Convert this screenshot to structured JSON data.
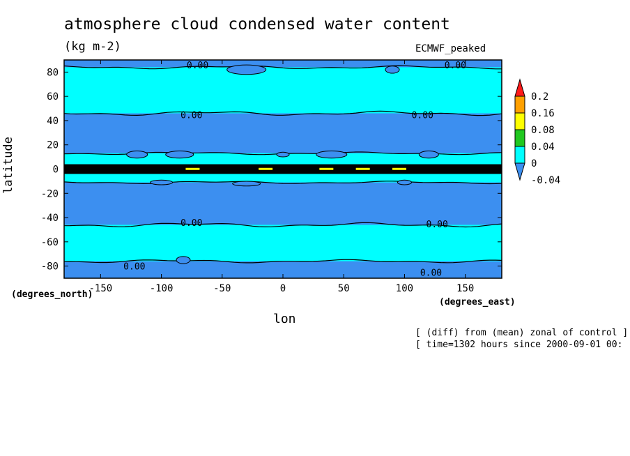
{
  "chart_data": {
    "type": "heatmap",
    "title": "atmosphere cloud condensed water content",
    "units": "(kg m-2)",
    "model_label": "ECMWF_peaked",
    "xlabel": "lon",
    "ylabel": "latitude",
    "x_units": "(degrees_east)",
    "y_units": "(degrees_north)",
    "xlim": [
      -180,
      180
    ],
    "ylim": [
      -90,
      90
    ],
    "x_ticks": [
      -150,
      -100,
      -50,
      0,
      50,
      100,
      150
    ],
    "y_ticks": [
      80,
      60,
      40,
      20,
      0,
      -20,
      -40,
      -60,
      -80
    ],
    "contour_label": "0.00",
    "colorbar": {
      "levels": [
        "-0.04",
        "0",
        "0.04",
        "0.08",
        "0.16",
        "0.2"
      ],
      "colors": [
        "#3c8ff0",
        "#00ffff",
        "#20c820",
        "#ffff00",
        "#ffa000",
        "#ff1a1a"
      ]
    },
    "bands": [
      {
        "lat_from": 90,
        "lat_to": 84,
        "value": "-0.04"
      },
      {
        "lat_from": 84,
        "lat_to": 46,
        "value": "0"
      },
      {
        "lat_from": 46,
        "lat_to": 13,
        "value": "-0.04"
      },
      {
        "lat_from": 13,
        "lat_to": 4,
        "value": "0"
      },
      {
        "lat_from": 4,
        "lat_to": -4,
        "value": "0"
      },
      {
        "lat_from": -4,
        "lat_to": -11,
        "value": "0"
      },
      {
        "lat_from": -11,
        "lat_to": -46,
        "value": "-0.04"
      },
      {
        "lat_from": -46,
        "lat_to": -76,
        "value": "0"
      },
      {
        "lat_from": -76,
        "lat_to": -90,
        "value": "-0.04"
      }
    ],
    "notes": [
      "[ (diff) from (mean) zonal of control ]",
      "[ time=1302 hours since 2000-09-01 00:"
    ]
  }
}
